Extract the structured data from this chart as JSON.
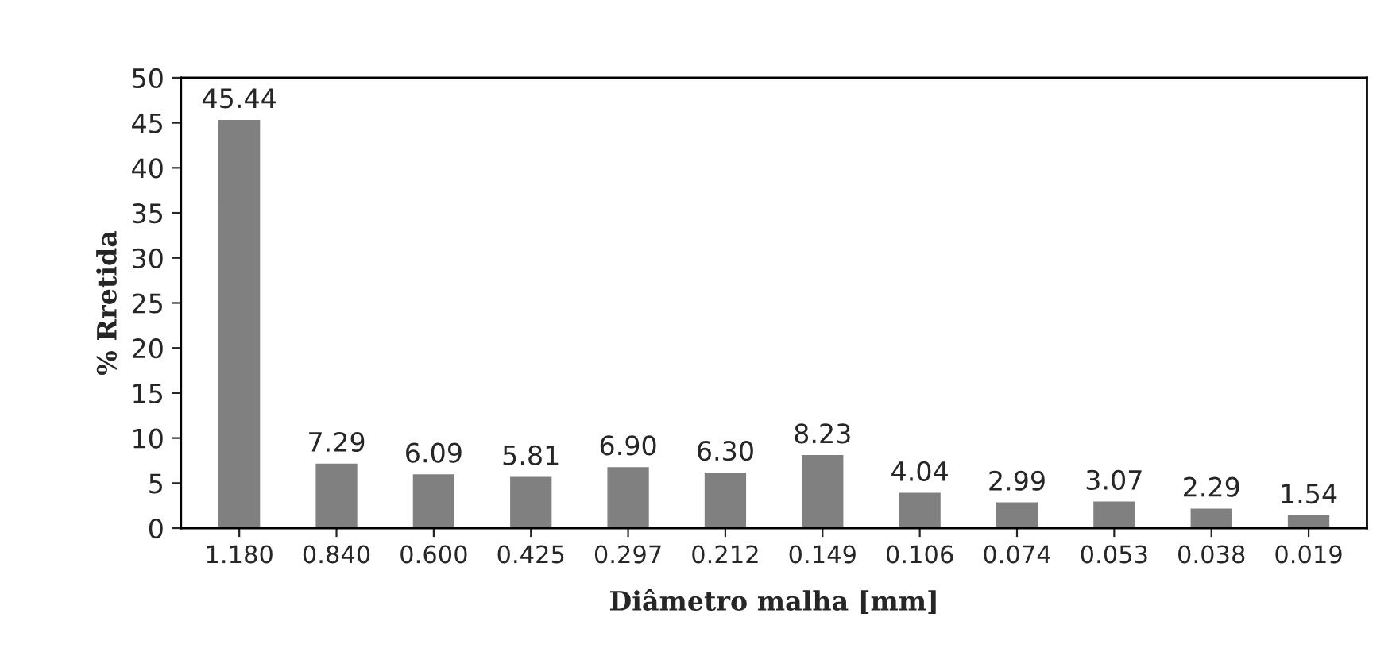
{
  "chart_data": {
    "type": "bar",
    "xlabel": "Diâmetro malha [mm]",
    "ylabel": "% Rretida",
    "categories": [
      "1.180",
      "0.840",
      "0.600",
      "0.425",
      "0.297",
      "0.212",
      "0.149",
      "0.106",
      "0.074",
      "0.053",
      "0.038",
      "0.019"
    ],
    "values": [
      45.44,
      7.29,
      6.09,
      5.81,
      6.9,
      6.3,
      8.23,
      4.04,
      2.99,
      3.07,
      2.29,
      1.54
    ],
    "value_labels": [
      "45.44",
      "7.29",
      "6.09",
      "5.81",
      "6.90",
      "6.30",
      "8.23",
      "4.04",
      "2.99",
      "3.07",
      "2.29",
      "1.54"
    ],
    "color": "#808080",
    "ylim": [
      0,
      50
    ],
    "yticks": [
      0,
      5,
      10,
      15,
      20,
      25,
      30,
      35,
      40,
      45,
      50
    ],
    "grid": false
  }
}
